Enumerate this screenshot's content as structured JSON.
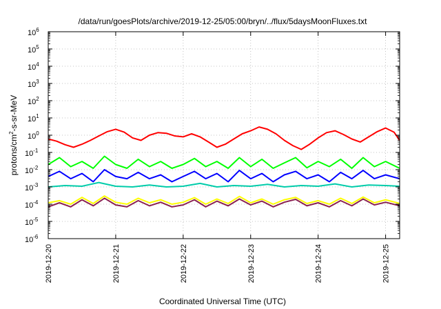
{
  "chart_data": {
    "type": "line",
    "title": "/data/run/goesPlots/archive/2019-12-25/05:00/bryn/../flux/5daysMoonFluxes.txt",
    "xlabel": "Coordinated Universal Time (UTC)",
    "ylabel": "protons/cm²-s-sr-MeV",
    "ylabel_parts": {
      "base": "protons/cm",
      "sup": "2",
      "rest": "-s-sr-MeV"
    },
    "xlim": [
      "2019-12-20T00:00",
      "2019-12-25T05:00"
    ],
    "ylim": [
      1e-06,
      1000000
    ],
    "y_scale": "log",
    "grid": true,
    "legend": "none",
    "x_ticks": [
      "2019-12-20",
      "2019-12-21",
      "2019-12-22",
      "2019-12-23",
      "2019-12-24",
      "2019-12-25"
    ],
    "y_ticks": [
      {
        "value": 1e-06,
        "base": "10",
        "exp": "-6"
      },
      {
        "value": 1e-05,
        "base": "10",
        "exp": "-5"
      },
      {
        "value": 0.0001,
        "base": "10",
        "exp": "-4"
      },
      {
        "value": 0.001,
        "base": "10",
        "exp": "-3"
      },
      {
        "value": 0.01,
        "base": "10",
        "exp": "-2"
      },
      {
        "value": 0.1,
        "base": "10",
        "exp": "-1"
      },
      {
        "value": 1,
        "base": "10",
        "exp": "0"
      },
      {
        "value": 10,
        "base": "10",
        "exp": "1"
      },
      {
        "value": 100,
        "base": "10",
        "exp": "2"
      },
      {
        "value": 1000,
        "base": "10",
        "exp": "3"
      },
      {
        "value": 10000,
        "base": "10",
        "exp": "4"
      },
      {
        "value": 100000,
        "base": "10",
        "exp": "5"
      },
      {
        "value": 1000000,
        "base": "10",
        "exp": "6"
      }
    ],
    "series": [
      {
        "color": "#ff0000",
        "x": [
          "2019-12-20T00:00",
          "2019-12-20T03:00",
          "2019-12-20T06:00",
          "2019-12-20T09:00",
          "2019-12-20T12:00",
          "2019-12-20T15:00",
          "2019-12-20T18:00",
          "2019-12-20T21:00",
          "2019-12-21T00:00",
          "2019-12-21T03:00",
          "2019-12-21T06:00",
          "2019-12-21T09:00",
          "2019-12-21T12:00",
          "2019-12-21T15:00",
          "2019-12-21T18:00",
          "2019-12-21T21:00",
          "2019-12-22T00:00",
          "2019-12-22T03:00",
          "2019-12-22T06:00",
          "2019-12-22T09:00",
          "2019-12-22T12:00",
          "2019-12-22T15:00",
          "2019-12-22T18:00",
          "2019-12-22T21:00",
          "2019-12-23T00:00",
          "2019-12-23T03:00",
          "2019-12-23T06:00",
          "2019-12-23T09:00",
          "2019-12-23T12:00",
          "2019-12-23T15:00",
          "2019-12-23T18:00",
          "2019-12-23T21:00",
          "2019-12-24T00:00",
          "2019-12-24T03:00",
          "2019-12-24T06:00",
          "2019-12-24T09:00",
          "2019-12-24T12:00",
          "2019-12-24T15:00",
          "2019-12-24T18:00",
          "2019-12-24T21:00",
          "2019-12-25T00:00",
          "2019-12-25T03:00",
          "2019-12-25T05:00"
        ],
        "values": [
          0.6,
          0.45,
          0.28,
          0.2,
          0.3,
          0.5,
          0.9,
          1.6,
          2.2,
          1.5,
          0.7,
          0.5,
          1.0,
          1.4,
          1.3,
          0.9,
          0.8,
          1.2,
          0.8,
          0.4,
          0.2,
          0.3,
          0.6,
          1.2,
          1.8,
          3.0,
          2.2,
          1.2,
          0.5,
          0.25,
          0.15,
          0.3,
          0.7,
          1.4,
          1.8,
          1.1,
          0.6,
          0.4,
          0.8,
          1.6,
          2.6,
          1.5,
          0.5
        ]
      },
      {
        "color": "#00ff00",
        "x": [
          "2019-12-20T00:00",
          "2019-12-20T04:00",
          "2019-12-20T08:00",
          "2019-12-20T12:00",
          "2019-12-20T16:00",
          "2019-12-20T20:00",
          "2019-12-21T00:00",
          "2019-12-21T04:00",
          "2019-12-21T08:00",
          "2019-12-21T12:00",
          "2019-12-21T16:00",
          "2019-12-21T20:00",
          "2019-12-22T00:00",
          "2019-12-22T04:00",
          "2019-12-22T08:00",
          "2019-12-22T12:00",
          "2019-12-22T16:00",
          "2019-12-22T20:00",
          "2019-12-23T00:00",
          "2019-12-23T04:00",
          "2019-12-23T08:00",
          "2019-12-23T12:00",
          "2019-12-23T16:00",
          "2019-12-23T20:00",
          "2019-12-24T00:00",
          "2019-12-24T04:00",
          "2019-12-24T08:00",
          "2019-12-24T12:00",
          "2019-12-24T16:00",
          "2019-12-24T20:00",
          "2019-12-25T00:00",
          "2019-12-25T05:00"
        ],
        "values": [
          0.02,
          0.05,
          0.015,
          0.03,
          0.012,
          0.06,
          0.02,
          0.012,
          0.04,
          0.015,
          0.03,
          0.012,
          0.02,
          0.045,
          0.015,
          0.03,
          0.012,
          0.05,
          0.015,
          0.04,
          0.012,
          0.025,
          0.05,
          0.013,
          0.03,
          0.015,
          0.04,
          0.012,
          0.05,
          0.015,
          0.03,
          0.012
        ]
      },
      {
        "color": "#0000ff",
        "x": [
          "2019-12-20T00:00",
          "2019-12-20T04:00",
          "2019-12-20T08:00",
          "2019-12-20T12:00",
          "2019-12-20T16:00",
          "2019-12-20T20:00",
          "2019-12-21T00:00",
          "2019-12-21T04:00",
          "2019-12-21T08:00",
          "2019-12-21T12:00",
          "2019-12-21T16:00",
          "2019-12-21T20:00",
          "2019-12-22T00:00",
          "2019-12-22T04:00",
          "2019-12-22T08:00",
          "2019-12-22T12:00",
          "2019-12-22T16:00",
          "2019-12-22T20:00",
          "2019-12-23T00:00",
          "2019-12-23T04:00",
          "2019-12-23T08:00",
          "2019-12-23T12:00",
          "2019-12-23T16:00",
          "2019-12-23T20:00",
          "2019-12-24T00:00",
          "2019-12-24T04:00",
          "2019-12-24T08:00",
          "2019-12-24T12:00",
          "2019-12-24T16:00",
          "2019-12-24T20:00",
          "2019-12-25T00:00",
          "2019-12-25T05:00"
        ],
        "values": [
          0.004,
          0.008,
          0.003,
          0.006,
          0.002,
          0.01,
          0.004,
          0.003,
          0.007,
          0.003,
          0.005,
          0.002,
          0.004,
          0.008,
          0.003,
          0.006,
          0.002,
          0.009,
          0.003,
          0.006,
          0.002,
          0.005,
          0.008,
          0.003,
          0.005,
          0.002,
          0.007,
          0.003,
          0.009,
          0.003,
          0.005,
          0.003
        ]
      },
      {
        "color": "#00ccaa",
        "x": [
          "2019-12-20T00:00",
          "2019-12-20T06:00",
          "2019-12-20T12:00",
          "2019-12-20T18:00",
          "2019-12-21T00:00",
          "2019-12-21T06:00",
          "2019-12-21T12:00",
          "2019-12-21T18:00",
          "2019-12-22T00:00",
          "2019-12-22T06:00",
          "2019-12-22T12:00",
          "2019-12-22T18:00",
          "2019-12-23T00:00",
          "2019-12-23T06:00",
          "2019-12-23T12:00",
          "2019-12-23T18:00",
          "2019-12-24T00:00",
          "2019-12-24T06:00",
          "2019-12-24T12:00",
          "2019-12-24T18:00",
          "2019-12-25T00:00",
          "2019-12-25T05:00"
        ],
        "values": [
          0.001,
          0.0012,
          0.0011,
          0.0018,
          0.0011,
          0.001,
          0.0013,
          0.001,
          0.0011,
          0.0016,
          0.001,
          0.0012,
          0.0011,
          0.0014,
          0.001,
          0.0012,
          0.0011,
          0.0015,
          0.001,
          0.0013,
          0.0012,
          0.0011
        ]
      },
      {
        "color": "#ffff00",
        "x": [
          "2019-12-20T00:00",
          "2019-12-20T04:00",
          "2019-12-20T08:00",
          "2019-12-20T12:00",
          "2019-12-20T16:00",
          "2019-12-20T20:00",
          "2019-12-21T00:00",
          "2019-12-21T04:00",
          "2019-12-21T08:00",
          "2019-12-21T12:00",
          "2019-12-21T16:00",
          "2019-12-21T20:00",
          "2019-12-22T00:00",
          "2019-12-22T04:00",
          "2019-12-22T08:00",
          "2019-12-22T12:00",
          "2019-12-22T16:00",
          "2019-12-22T20:00",
          "2019-12-23T00:00",
          "2019-12-23T04:00",
          "2019-12-23T08:00",
          "2019-12-23T12:00",
          "2019-12-23T16:00",
          "2019-12-23T20:00",
          "2019-12-24T00:00",
          "2019-12-24T04:00",
          "2019-12-24T08:00",
          "2019-12-24T12:00",
          "2019-12-24T16:00",
          "2019-12-24T20:00",
          "2019-12-25T00:00",
          "2019-12-25T05:00"
        ],
        "values": [
          0.00012,
          0.00016,
          0.0001,
          0.00025,
          0.00011,
          0.0003,
          0.00013,
          0.0001,
          0.00022,
          0.00012,
          0.00018,
          0.0001,
          0.00013,
          0.00024,
          0.0001,
          0.0002,
          0.00011,
          0.00028,
          0.00012,
          0.0002,
          0.0001,
          0.00018,
          0.00025,
          0.00011,
          0.00016,
          0.0001,
          0.00022,
          0.00011,
          0.00026,
          0.00012,
          0.00018,
          0.00011
        ]
      },
      {
        "color": "#8b2252",
        "x": [
          "2019-12-20T00:00",
          "2019-12-20T04:00",
          "2019-12-20T08:00",
          "2019-12-20T12:00",
          "2019-12-20T16:00",
          "2019-12-20T20:00",
          "2019-12-21T00:00",
          "2019-12-21T04:00",
          "2019-12-21T08:00",
          "2019-12-21T12:00",
          "2019-12-21T16:00",
          "2019-12-21T20:00",
          "2019-12-22T00:00",
          "2019-12-22T04:00",
          "2019-12-22T08:00",
          "2019-12-22T12:00",
          "2019-12-22T16:00",
          "2019-12-22T20:00",
          "2019-12-23T00:00",
          "2019-12-23T04:00",
          "2019-12-23T08:00",
          "2019-12-23T12:00",
          "2019-12-23T16:00",
          "2019-12-23T20:00",
          "2019-12-24T00:00",
          "2019-12-24T04:00",
          "2019-12-24T08:00",
          "2019-12-24T12:00",
          "2019-12-24T16:00",
          "2019-12-24T20:00",
          "2019-12-25T00:00",
          "2019-12-25T05:00"
        ],
        "values": [
          7e-05,
          0.00012,
          7e-05,
          0.00018,
          8e-05,
          0.00022,
          9e-05,
          7e-05,
          0.00016,
          8e-05,
          0.00013,
          7e-05,
          9e-05,
          0.00018,
          7e-05,
          0.00015,
          8e-05,
          0.0002,
          9e-05,
          0.00015,
          7e-05,
          0.00013,
          0.00019,
          8e-05,
          0.00012,
          7e-05,
          0.00016,
          8e-05,
          0.0002,
          9e-05,
          0.00013,
          8e-05
        ]
      }
    ]
  }
}
